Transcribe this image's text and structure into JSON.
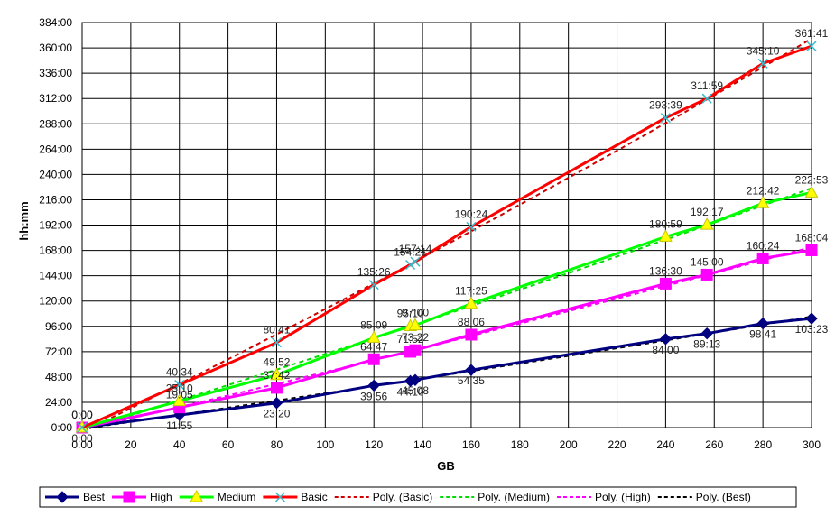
{
  "chart_data": {
    "type": "line",
    "title": "",
    "xlabel": "GB",
    "ylabel": "hh:mm",
    "xlim": [
      0,
      300
    ],
    "ylim": [
      0,
      384
    ],
    "x_ticks": [
      "0.00",
      "20",
      "40",
      "60",
      "80",
      "100",
      "120",
      "140",
      "160",
      "180",
      "200",
      "220",
      "240",
      "260",
      "280",
      "300"
    ],
    "y_ticks": [
      "0:00",
      "24:00",
      "48:00",
      "72:00",
      "96:00",
      "120:00",
      "144:00",
      "168:00",
      "192:00",
      "216:00",
      "240:00",
      "264:00",
      "288:00",
      "312:00",
      "336:00",
      "360:00",
      "384:00"
    ],
    "grid": true,
    "legend_position": "bottom",
    "series": [
      {
        "name": "Best",
        "color": "#000080",
        "marker": "diamond",
        "points": [
          {
            "x": 0,
            "y": 0,
            "label": "0:00"
          },
          {
            "x": 40,
            "y": 11.92,
            "label": "11:55"
          },
          {
            "x": 80,
            "y": 23.33,
            "label": "23:20"
          },
          {
            "x": 120,
            "y": 39.93,
            "label": "39:56"
          },
          {
            "x": 135,
            "y": 44.17,
            "label": "44:10"
          },
          {
            "x": 137,
            "y": 45.13,
            "label": "45:08"
          },
          {
            "x": 160,
            "y": 54.58,
            "label": "54:35"
          },
          {
            "x": 240,
            "y": 84.0,
            "label": "84:00"
          },
          {
            "x": 257,
            "y": 89.22,
            "label": "89:13"
          },
          {
            "x": 280,
            "y": 98.68,
            "label": "98:41"
          },
          {
            "x": 300,
            "y": 103.38,
            "label": "103:23"
          }
        ]
      },
      {
        "name": "High",
        "color": "#ff00ff",
        "marker": "square",
        "points": [
          {
            "x": 0,
            "y": 0,
            "label": "0:00"
          },
          {
            "x": 40,
            "y": 19.08,
            "label": "19:05"
          },
          {
            "x": 80,
            "y": 37.7,
            "label": "37:42"
          },
          {
            "x": 120,
            "y": 64.78,
            "label": "64:47"
          },
          {
            "x": 135,
            "y": 71.87,
            "label": "71:52"
          },
          {
            "x": 137,
            "y": 73.37,
            "label": "73:22"
          },
          {
            "x": 160,
            "y": 88.1,
            "label": "88:06"
          },
          {
            "x": 240,
            "y": 136.5,
            "label": "136:30"
          },
          {
            "x": 257,
            "y": 145.0,
            "label": "145:00"
          },
          {
            "x": 280,
            "y": 160.4,
            "label": "160:24"
          },
          {
            "x": 300,
            "y": 168.07,
            "label": "168:04"
          }
        ]
      },
      {
        "name": "Medium",
        "color": "#00ff00",
        "marker": "triangle",
        "points": [
          {
            "x": 0,
            "y": 0,
            "label": "0:00"
          },
          {
            "x": 40,
            "y": 25.17,
            "label": "25:10"
          },
          {
            "x": 80,
            "y": 49.87,
            "label": "49:52"
          },
          {
            "x": 120,
            "y": 85.15,
            "label": "85:09"
          },
          {
            "x": 135,
            "y": 96.17,
            "label": "96:10"
          },
          {
            "x": 137,
            "y": 97.0,
            "label": "97:00"
          },
          {
            "x": 160,
            "y": 117.42,
            "label": "117:25"
          },
          {
            "x": 240,
            "y": 180.98,
            "label": "180:59"
          },
          {
            "x": 257,
            "y": 192.28,
            "label": "192:17"
          },
          {
            "x": 280,
            "y": 212.7,
            "label": "212:42"
          },
          {
            "x": 300,
            "y": 222.88,
            "label": "222:53"
          }
        ]
      },
      {
        "name": "Basic",
        "color": "#ff0000",
        "marker": "x",
        "points": [
          {
            "x": 0,
            "y": 0,
            "label": "0:00"
          },
          {
            "x": 40,
            "y": 40.57,
            "label": "40:34"
          },
          {
            "x": 80,
            "y": 80.68,
            "label": "80:41"
          },
          {
            "x": 120,
            "y": 135.43,
            "label": "135:26"
          },
          {
            "x": 135,
            "y": 154.35,
            "label": "154:21"
          },
          {
            "x": 137,
            "y": 157.23,
            "label": "157:14"
          },
          {
            "x": 160,
            "y": 190.4,
            "label": "190:24"
          },
          {
            "x": 240,
            "y": 293.65,
            "label": "293:39"
          },
          {
            "x": 257,
            "y": 311.98,
            "label": "311:59"
          },
          {
            "x": 280,
            "y": 345.17,
            "label": "345:10"
          },
          {
            "x": 300,
            "y": 361.68,
            "label": "361:41"
          }
        ]
      }
    ],
    "trendlines": [
      {
        "name": "Poly. (Basic)",
        "color": "#cc0000",
        "dash": "dashed",
        "of": "Basic"
      },
      {
        "name": "Poly. (Medium)",
        "color": "#00dd00",
        "dash": "dashed",
        "of": "Medium"
      },
      {
        "name": "Poly. (High)",
        "color": "#ff00ff",
        "dash": "dashed",
        "of": "High"
      },
      {
        "name": "Poly. (Best)",
        "color": "#000000",
        "dash": "dashed",
        "of": "Best"
      }
    ]
  }
}
